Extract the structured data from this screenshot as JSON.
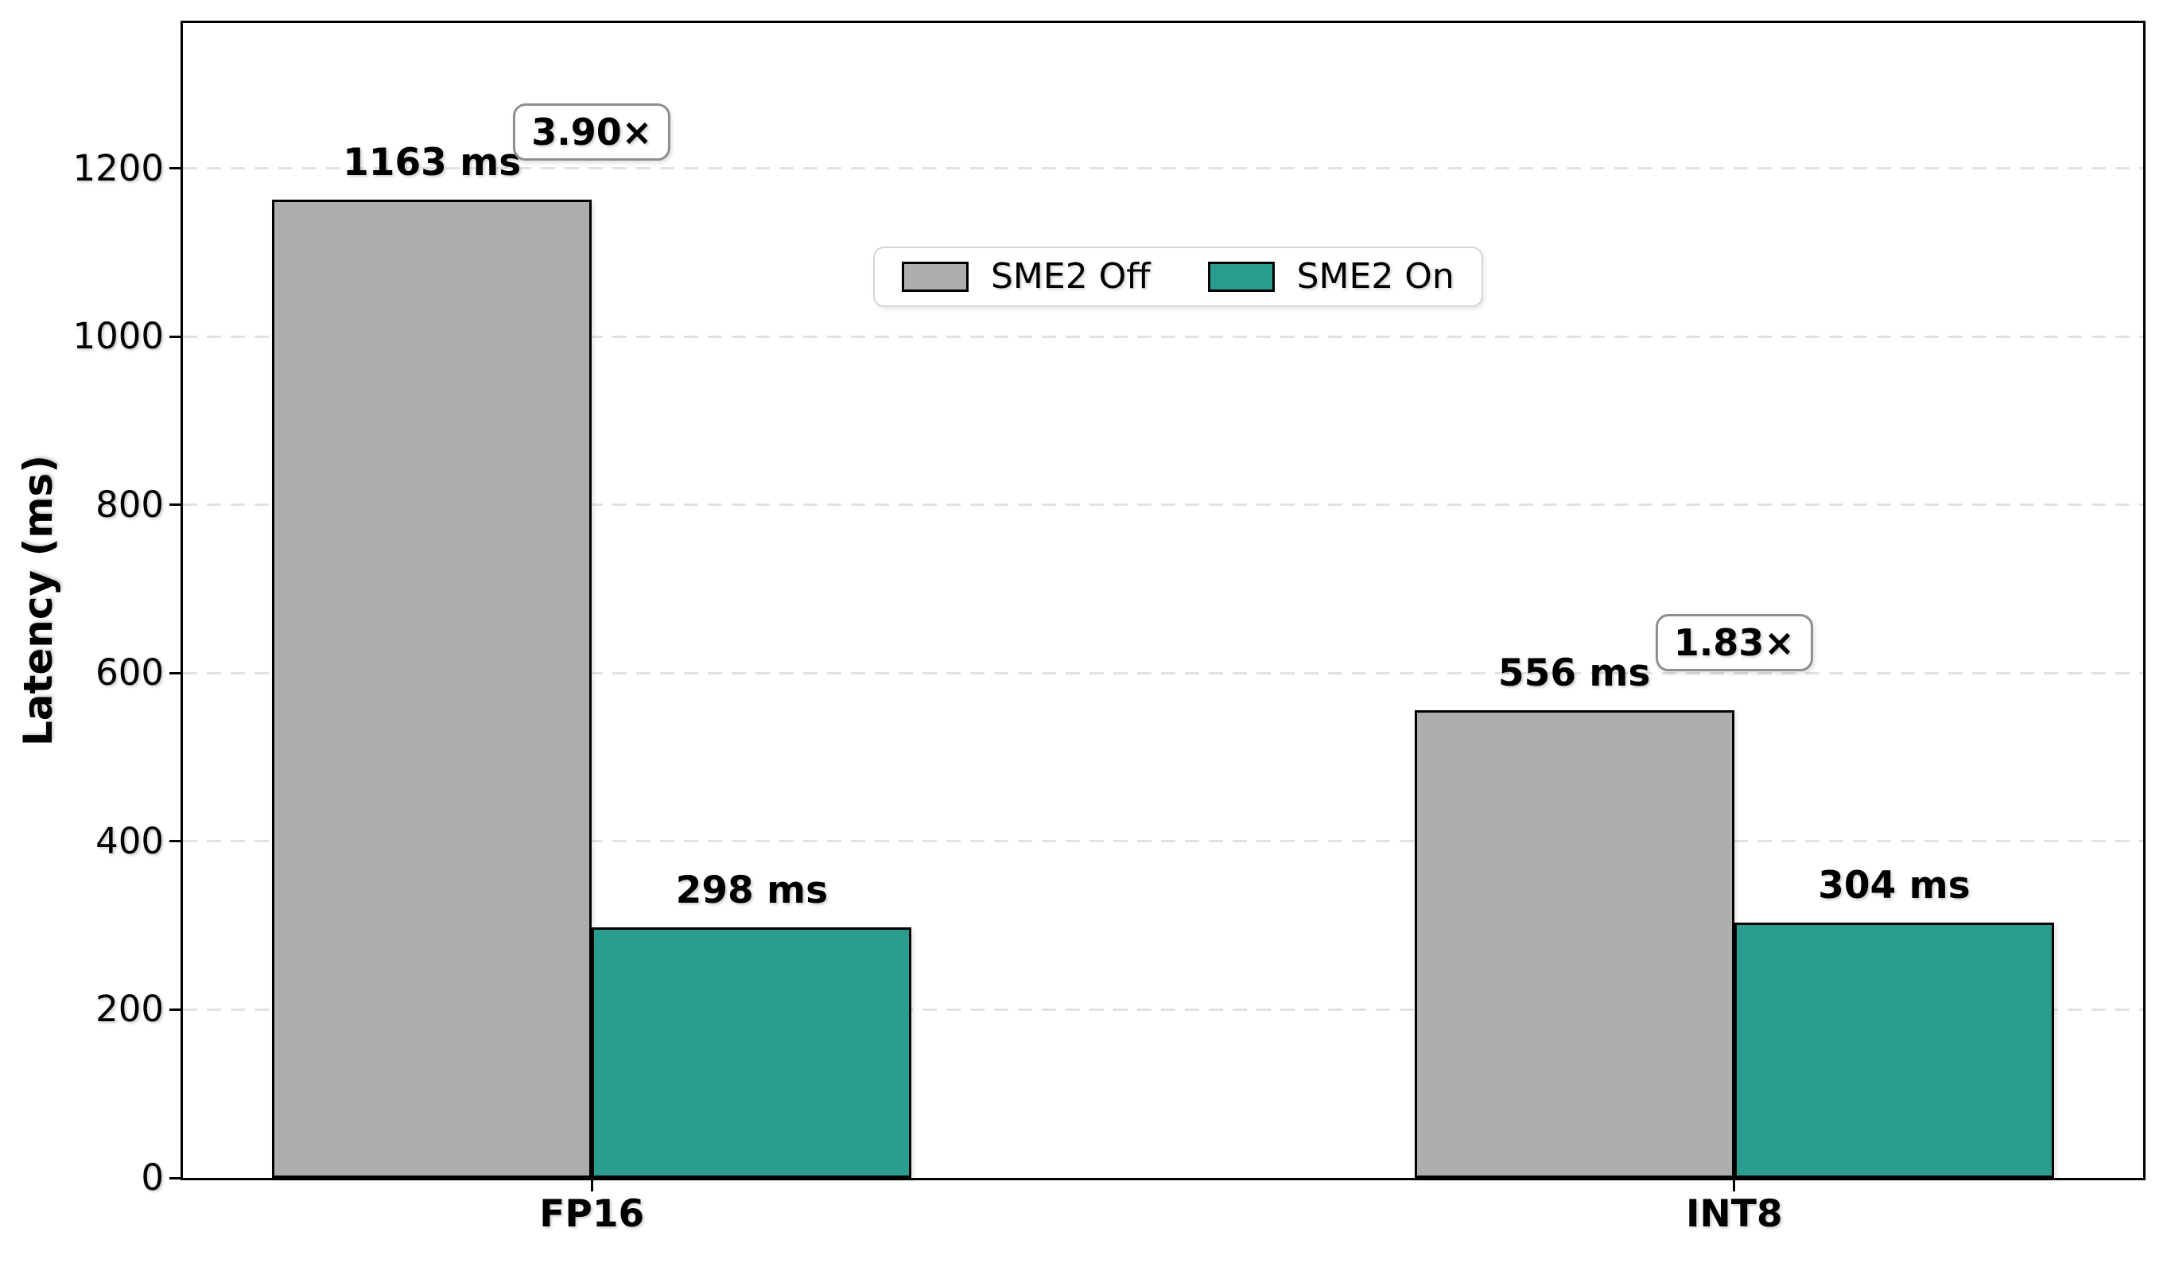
{
  "chart_data": {
    "type": "bar",
    "title": "",
    "xlabel": "",
    "ylabel": "Latency (ms)",
    "categories": [
      "FP16",
      "INT8"
    ],
    "series": [
      {
        "name": "SME2 Off",
        "color": "#aeaeae",
        "values": [
          1163,
          556
        ]
      },
      {
        "name": "SME2 On",
        "color": "#2a9d8f",
        "values": [
          298,
          304
        ]
      }
    ],
    "value_labels": [
      [
        "1163 ms",
        "556 ms"
      ],
      [
        "298 ms",
        "304 ms"
      ]
    ],
    "speedup_badges": [
      "3.90×",
      "1.83×"
    ],
    "yticks": [
      0,
      200,
      400,
      600,
      800,
      1000,
      1200
    ],
    "ytick_labels": [
      "0",
      "200",
      "400",
      "600",
      "800",
      "1000",
      "1200"
    ],
    "ylim": [
      0,
      1373
    ],
    "xlim": [
      -0.358,
      1.358
    ],
    "bar_width": 0.28,
    "grid": "horizontal-dashed",
    "grid_color": "#e2e2e2",
    "bar_edge_color": "#000000",
    "legend_position": "upper-center-inside",
    "background": "#ffffff"
  },
  "legend": {
    "items": [
      {
        "label": "SME2 Off",
        "color": "#aeaeae"
      },
      {
        "label": "SME2 On",
        "color": "#2a9d8f"
      }
    ]
  }
}
